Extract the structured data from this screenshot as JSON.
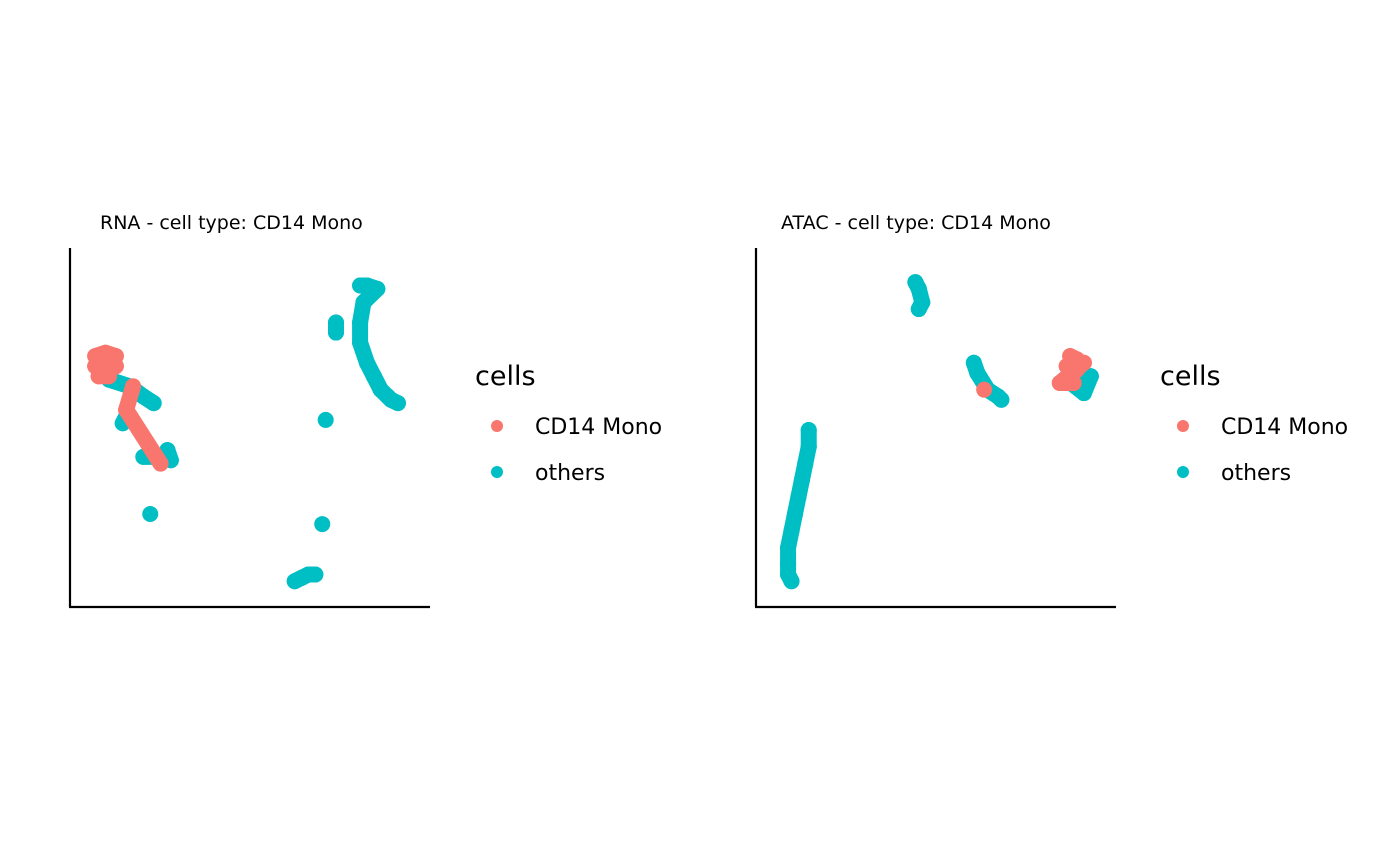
{
  "colors": {
    "cd14": "#F8766D",
    "others": "#00BFC4"
  },
  "chart_data": [
    {
      "type": "scatter",
      "title": "RNA - cell type: CD14 Mono",
      "xlabel": "",
      "ylabel": "",
      "xlim": [
        0,
        100
      ],
      "ylim": [
        0,
        100
      ],
      "grid": false,
      "legend": {
        "title": "cells",
        "entries": [
          "CD14 Mono",
          "others"
        ],
        "placement": "right"
      },
      "series": [
        {
          "name": "others",
          "color": "#00BFC4",
          "clusters": [
            {
              "label": "large stretched cluster top-right",
              "points": [
                [
                  82,
                  93
                ],
                [
                  84,
                  93
                ],
                [
                  87,
                  92
                ],
                [
                  83,
                  88
                ],
                [
                  82,
                  82
                ],
                [
                  82,
                  76
                ],
                [
                  84,
                  70
                ],
                [
                  86,
                  66
                ],
                [
                  88,
                  62
                ],
                [
                  90,
                  60
                ],
                [
                  91,
                  59
                ],
                [
                  93,
                  58
                ]
              ]
            },
            {
              "label": "small satellite top-right",
              "points": [
                [
                  75,
                  82
                ],
                [
                  75,
                  79
                ]
              ]
            },
            {
              "label": "spots under CD14 blob",
              "points": [
                [
                  9,
                  65
                ],
                [
                  15,
                  63
                ],
                [
                  19,
                  60
                ],
                [
                  22,
                  58
                ]
              ]
            },
            {
              "label": "small cluster left",
              "points": [
                [
                  14,
                  54
                ],
                [
                  13,
                  52
                ]
              ]
            },
            {
              "label": "small cluster mid-left",
              "points": [
                [
                  19,
                  42
                ],
                [
                  25,
                  42
                ],
                [
                  26,
                  44
                ],
                [
                  27,
                  41
                ]
              ]
            },
            {
              "label": "small cluster low-left",
              "points": [
                [
                  21,
                  25
                ]
              ]
            },
            {
              "label": "isolated point",
              "points": [
                [
                  72,
                  53
                ]
              ]
            },
            {
              "label": "small cluster low-right",
              "points": [
                [
                  71,
                  22
                ]
              ]
            },
            {
              "label": "elongated cluster bottom",
              "points": [
                [
                  63,
                  5
                ],
                [
                  65,
                  6
                ],
                [
                  67,
                  7
                ],
                [
                  69,
                  7
                ]
              ]
            }
          ]
        },
        {
          "name": "CD14 Mono",
          "color": "#F8766D",
          "clusters": [
            {
              "label": "main CD14 Mono cluster",
              "points": [
                [
                  5,
                  72
                ],
                [
                  8,
                  73
                ],
                [
                  11,
                  72
                ],
                [
                  5,
                  69
                ],
                [
                  8,
                  69
                ],
                [
                  11,
                  69
                ],
                [
                  6,
                  66
                ],
                [
                  9,
                  66
                ]
              ]
            },
            {
              "label": "scattered CD14 Mono",
              "points": [
                [
                  16,
                  63
                ],
                [
                  14,
                  56
                ],
                [
                  24,
                  40
                ]
              ]
            }
          ]
        }
      ]
    },
    {
      "type": "scatter",
      "title": "ATAC - cell type: CD14 Mono",
      "xlabel": "",
      "ylabel": "",
      "xlim": [
        0,
        100
      ],
      "ylim": [
        0,
        100
      ],
      "grid": false,
      "legend": {
        "title": "cells",
        "entries": [
          "CD14 Mono",
          "others"
        ],
        "placement": "right"
      },
      "series": [
        {
          "name": "others",
          "color": "#00BFC4",
          "clusters": [
            {
              "label": "cluster top",
              "points": [
                [
                  44,
                  94
                ],
                [
                  45,
                  92
                ],
                [
                  46,
                  88
                ],
                [
                  45,
                  86
                ]
              ]
            },
            {
              "label": "small cluster middle",
              "points": [
                [
                  61,
                  70
                ],
                [
                  62,
                  67
                ],
                [
                  65,
                  62
                ],
                [
                  68,
                  60
                ],
                [
                  69,
                  59
                ]
              ]
            },
            {
              "label": "right cluster others",
              "points": [
                [
                  89,
                  64
                ],
                [
                  95,
                  66
                ],
                [
                  93,
                  61
                ],
                [
                  88,
                  65
                ]
              ]
            },
            {
              "label": "long cluster bottom-left",
              "points": [
                [
                  13,
                  50
                ],
                [
                  13,
                  45
                ],
                [
                  12,
                  40
                ],
                [
                  11,
                  35
                ],
                [
                  10,
                  30
                ],
                [
                  9,
                  25
                ],
                [
                  8,
                  20
                ],
                [
                  7,
                  15
                ],
                [
                  7,
                  10
                ],
                [
                  7,
                  7
                ],
                [
                  8,
                  5
                ]
              ]
            }
          ]
        },
        {
          "name": "CD14 Mono",
          "color": "#F8766D",
          "clusters": [
            {
              "label": "right CD14 Mono cluster",
              "points": [
                [
                  89,
                  72
                ],
                [
                  91,
                  71
                ],
                [
                  88,
                  69
                ],
                [
                  91,
                  68
                ],
                [
                  88,
                  65
                ],
                [
                  90,
                  64
                ],
                [
                  86,
                  64
                ],
                [
                  93,
                  70
                ]
              ]
            },
            {
              "label": "scattered CD14 Mono",
              "points": [
                [
                  64,
                  62
                ]
              ]
            }
          ]
        }
      ]
    }
  ]
}
